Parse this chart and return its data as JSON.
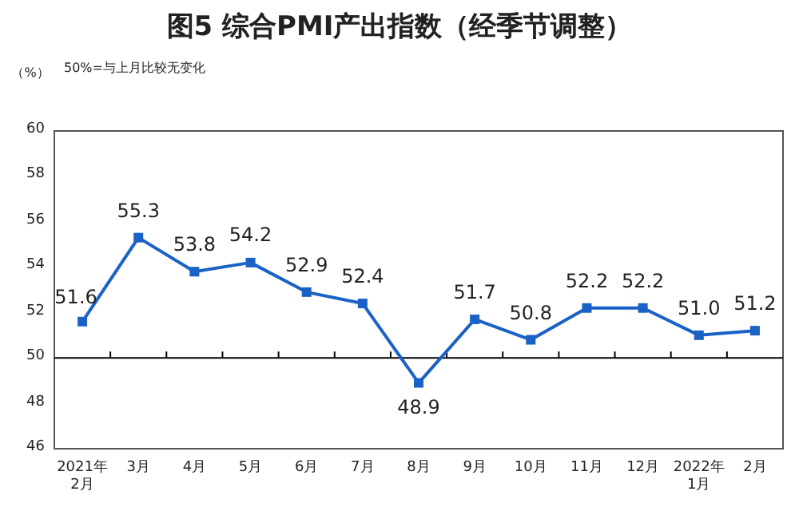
{
  "chart_data": {
    "type": "line",
    "title": "图5 综合PMI产出指数（经季节调整）",
    "ylabel": "（%）",
    "annotations": [
      "50%=与上月比较无变化"
    ],
    "categories": [
      "2021年2月",
      "3月",
      "4月",
      "5月",
      "6月",
      "7月",
      "8月",
      "9月",
      "10月",
      "11月",
      "12月",
      "2022年1月",
      "2月"
    ],
    "series": [
      {
        "color": "#1a62c6",
        "values": [
          51.6,
          55.3,
          53.8,
          54.2,
          52.9,
          52.4,
          48.9,
          51.7,
          50.8,
          52.2,
          52.2,
          51.0,
          51.2
        ],
        "value_labels": [
          "51.6",
          "55.3",
          "53.8",
          "54.2",
          "52.9",
          "52.4",
          "48.9",
          "51.7",
          "50.8",
          "52.2",
          "52.2",
          "51.0",
          "51.2"
        ]
      }
    ],
    "ylim": [
      46,
      60
    ],
    "yticks": [
      46,
      48,
      50,
      52,
      54,
      56,
      58,
      60
    ],
    "ref_lines": [
      {
        "axis": "y",
        "value": 50,
        "color": "#000000"
      }
    ],
    "marker": "square",
    "line_style": "solid"
  }
}
